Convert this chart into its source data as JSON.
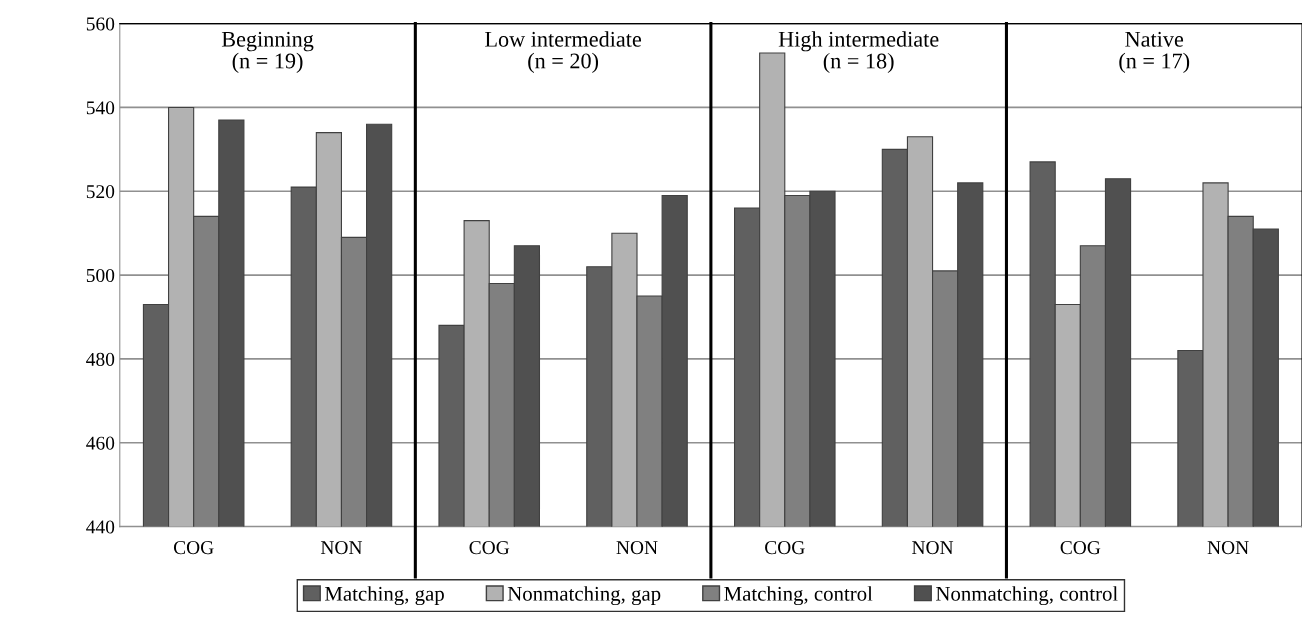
{
  "chart_data": {
    "type": "bar",
    "categories": [
      "COG",
      "NON",
      "COG",
      "NON",
      "COG",
      "NON",
      "COG",
      "NON"
    ],
    "series": [
      {
        "name": "Matching, gap",
        "color": "#606060",
        "values": [
          493,
          521,
          488,
          502,
          516,
          530,
          527,
          482
        ]
      },
      {
        "name": "Nonmatching, gap",
        "color": "#b2b2b2",
        "values": [
          540,
          534,
          513,
          510,
          553,
          533,
          493,
          522
        ]
      },
      {
        "name": "Matching, control",
        "color": "#808080",
        "values": [
          514,
          509,
          498,
          495,
          519,
          501,
          507,
          514
        ]
      },
      {
        "name": "Nonmatching, control",
        "color": "#505050",
        "values": [
          537,
          536,
          507,
          519,
          520,
          522,
          523,
          511
        ]
      }
    ],
    "ylim": [
      440,
      560
    ],
    "yticks": [
      440,
      460,
      480,
      500,
      520,
      540,
      560
    ],
    "grid": "y",
    "legend": "bottom",
    "annotations": [
      "Beginning\n(n = 19)",
      "Low intermediate\n(n = 20)",
      "High intermediate\n(n = 18)",
      "Native\n(n = 17)"
    ]
  }
}
